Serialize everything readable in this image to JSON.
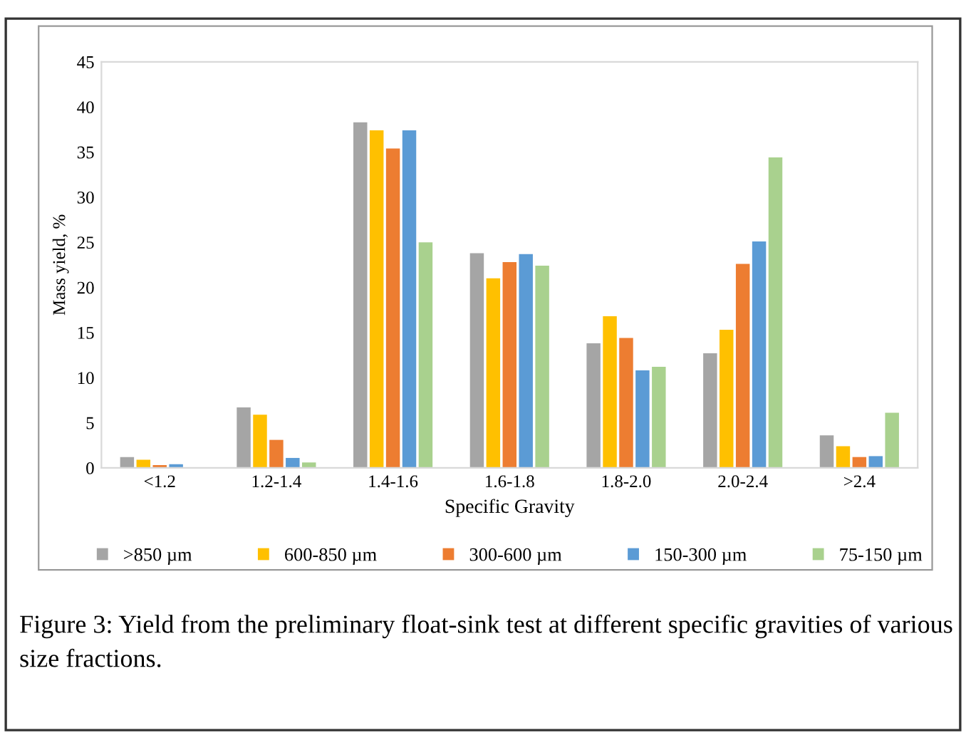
{
  "chart_data": {
    "type": "bar",
    "xlabel": "Specific Gravity",
    "ylabel": "Mass yield, %",
    "categories": [
      "<1.2",
      "1.2-1.4",
      "1.4-1.6",
      "1.6-1.8",
      "1.8-2.0",
      "2.0-2.4",
      ">2.4"
    ],
    "series": [
      {
        "name": ">850 µm",
        "color": "#a5a5a5",
        "values": [
          1.2,
          6.7,
          38.3,
          23.8,
          13.8,
          12.7,
          3.6
        ]
      },
      {
        "name": "600-850 µm",
        "color": "#ffc000",
        "values": [
          0.9,
          5.9,
          37.4,
          21.0,
          16.8,
          15.3,
          2.4
        ]
      },
      {
        "name": "300-600 µm",
        "color": "#ed7d31",
        "values": [
          0.3,
          3.1,
          35.4,
          22.8,
          14.4,
          22.6,
          1.2
        ]
      },
      {
        "name": "150-300 µm",
        "color": "#5b9bd5",
        "values": [
          0.4,
          1.1,
          37.4,
          23.7,
          10.8,
          25.1,
          1.3
        ]
      },
      {
        "name": "75-150 µm",
        "color": "#a9d18e",
        "values": [
          null,
          0.6,
          25.0,
          22.4,
          11.2,
          34.4,
          6.1
        ]
      }
    ],
    "ylim": [
      0,
      45
    ],
    "yticks": [
      0,
      5,
      10,
      15,
      20,
      25,
      30,
      35,
      40,
      45
    ],
    "grid": false,
    "legend": "bottom",
    "annotations": [
      "Figure 3: Yield from the preliminary float-sink test at different specific gravities of various size fractions."
    ]
  }
}
